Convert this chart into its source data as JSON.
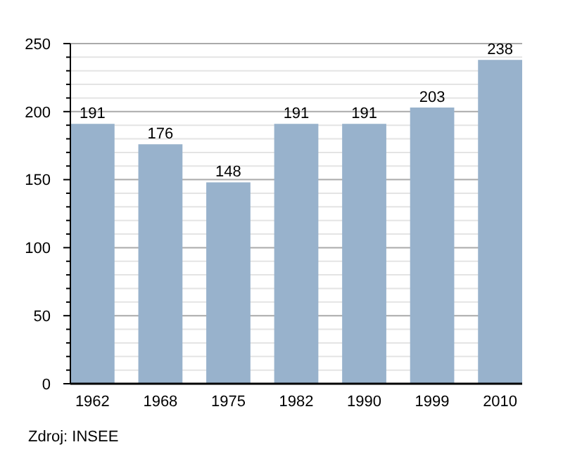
{
  "chart_data": {
    "type": "bar",
    "categories": [
      "1962",
      "1968",
      "1975",
      "1982",
      "1990",
      "1999",
      "2010"
    ],
    "values": [
      191,
      176,
      148,
      191,
      191,
      203,
      238
    ],
    "color": "#98b2cc",
    "data_labels": true,
    "grid": "y",
    "ylim": [
      0,
      250
    ],
    "yticks": [
      0,
      {
        "value": 10,
        "label": null
      },
      {
        "value": 20,
        "label": null
      },
      {
        "value": 30,
        "label": null
      },
      {
        "value": 40,
        "label": null
      },
      50,
      {
        "value": 60,
        "label": null
      },
      {
        "value": 70,
        "label": null
      },
      {
        "value": 80,
        "label": null
      },
      {
        "value": 90,
        "label": null
      },
      100,
      {
        "value": 110,
        "label": null
      },
      {
        "value": 120,
        "label": null
      },
      {
        "value": 130,
        "label": null
      },
      {
        "value": 140,
        "label": null
      },
      150,
      {
        "value": 160,
        "label": null
      },
      {
        "value": 170,
        "label": null
      },
      {
        "value": 180,
        "label": null
      },
      {
        "value": 190,
        "label": null
      },
      200,
      {
        "value": 210,
        "label": null
      },
      {
        "value": 220,
        "label": null
      },
      {
        "value": 230,
        "label": null
      },
      {
        "value": 240,
        "label": null
      },
      250
    ],
    "annotations": [
      "Zdroj: INSEE"
    ]
  }
}
